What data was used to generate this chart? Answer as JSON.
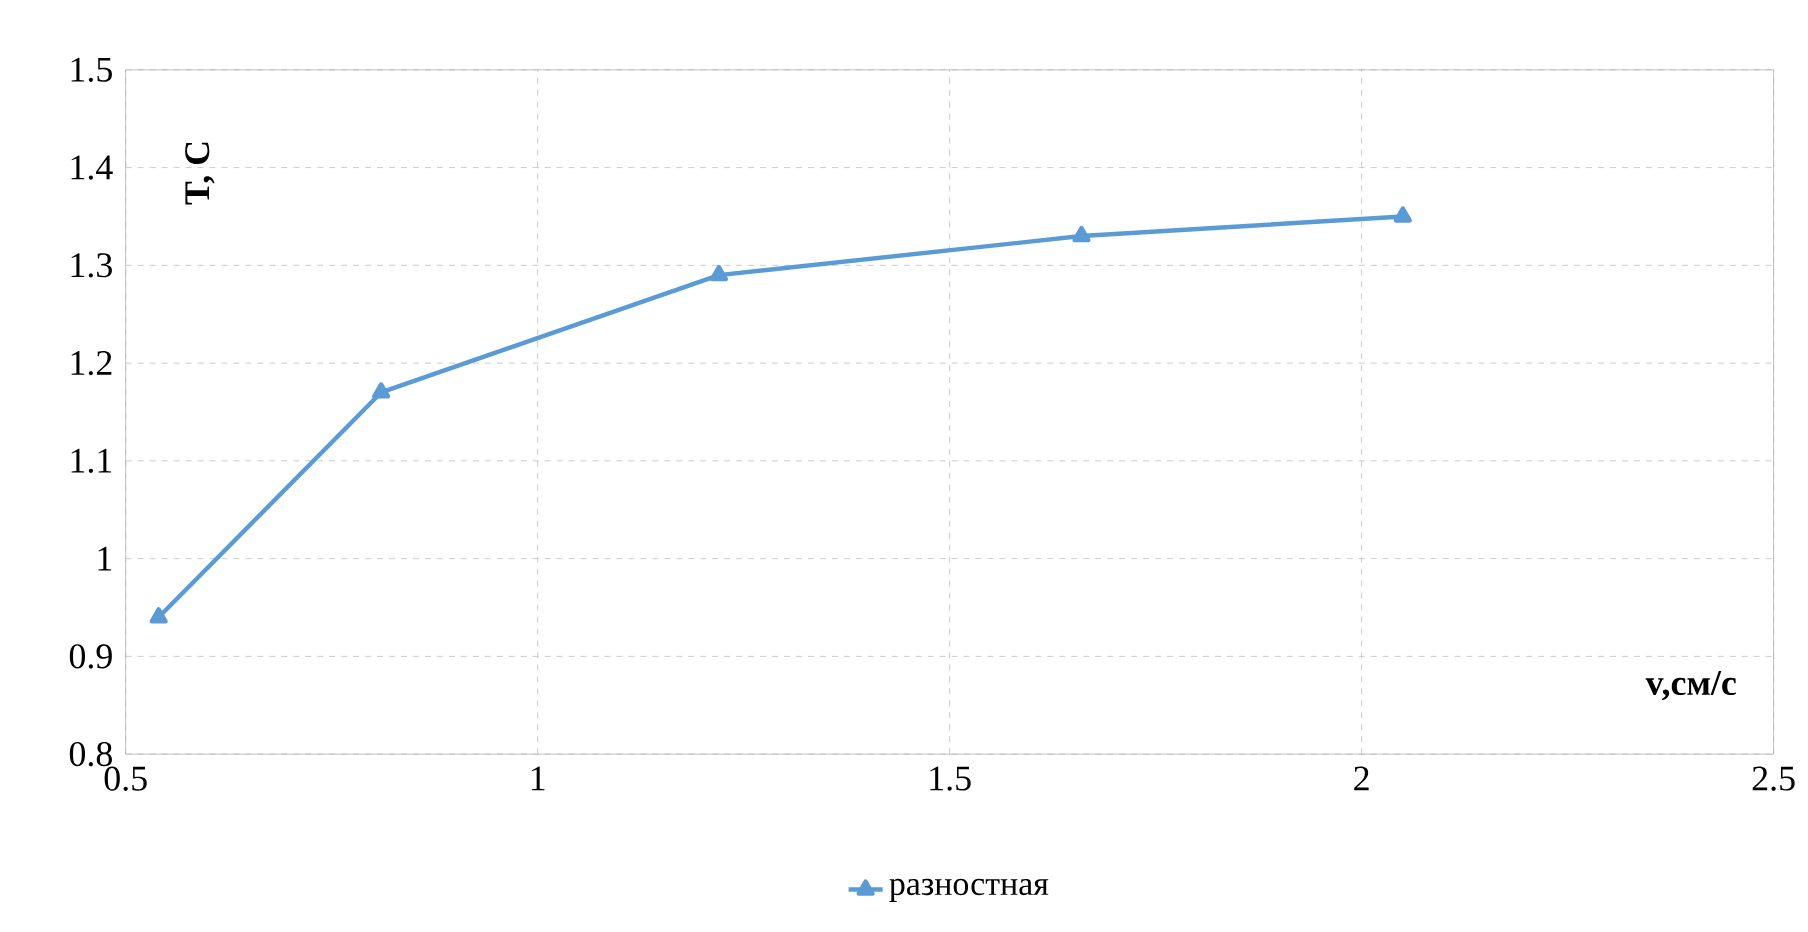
{
  "chart_data": {
    "type": "line",
    "xlabel": "v,см/с",
    "ylabel": "T, C",
    "x": [
      0.54,
      0.81,
      1.22,
      1.66,
      2.05
    ],
    "series": [
      {
        "name": "разностная",
        "color": "#5b9bd5",
        "values": [
          0.94,
          1.17,
          1.29,
          1.33,
          1.35
        ]
      }
    ],
    "xlim": [
      0.5,
      2.5
    ],
    "xticks": [
      0.5,
      1,
      1.5,
      2,
      2.5
    ],
    "ylim": [
      0.8,
      1.5
    ],
    "yticks": [
      0.8,
      0.9,
      1,
      1.1,
      1.2,
      1.3,
      1.4,
      1.5
    ],
    "grid": true,
    "legend": "bottom",
    "marker": "triangle",
    "line_style": "solid"
  }
}
